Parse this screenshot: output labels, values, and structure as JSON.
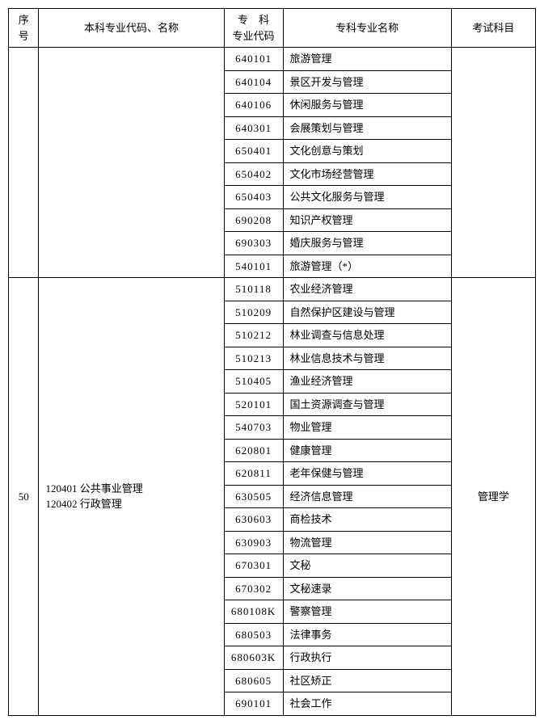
{
  "header": {
    "seq": "序号",
    "bk": "本科专业代码、名称",
    "zkc": "专　科\n专业代码",
    "zkm": "专科专业名称",
    "exam": "考试科目"
  },
  "groups": [
    {
      "seq": "",
      "bk": "",
      "exam": "",
      "rows": [
        {
          "code": "640101",
          "name": "旅游管理"
        },
        {
          "code": "640104",
          "name": "景区开发与管理"
        },
        {
          "code": "640106",
          "name": "休闲服务与管理"
        },
        {
          "code": "640301",
          "name": "会展策划与管理"
        },
        {
          "code": "650401",
          "name": "文化创意与策划"
        },
        {
          "code": "650402",
          "name": "文化市场经营管理"
        },
        {
          "code": "650403",
          "name": "公共文化服务与管理"
        },
        {
          "code": "690208",
          "name": "知识产权管理"
        },
        {
          "code": "690303",
          "name": "婚庆服务与管理"
        },
        {
          "code": "540101",
          "name": "旅游管理（*）"
        }
      ]
    },
    {
      "seq": "50",
      "bk": "120401 公共事业管理\n120402 行政管理",
      "exam": "管理学",
      "rows": [
        {
          "code": "510118",
          "name": "农业经济管理"
        },
        {
          "code": "510209",
          "name": "自然保护区建设与管理"
        },
        {
          "code": "510212",
          "name": "林业调查与信息处理"
        },
        {
          "code": "510213",
          "name": "林业信息技术与管理"
        },
        {
          "code": "510405",
          "name": "渔业经济管理"
        },
        {
          "code": "520101",
          "name": "国土资源调查与管理"
        },
        {
          "code": "540703",
          "name": "物业管理"
        },
        {
          "code": "620801",
          "name": "健康管理"
        },
        {
          "code": "620811",
          "name": "老年保健与管理"
        },
        {
          "code": "630505",
          "name": "经济信息管理"
        },
        {
          "code": "630603",
          "name": "商检技术"
        },
        {
          "code": "630903",
          "name": "物流管理"
        },
        {
          "code": "670301",
          "name": "文秘"
        },
        {
          "code": "670302",
          "name": "文秘速录"
        },
        {
          "code": "680108K",
          "name": "警察管理"
        },
        {
          "code": "680503",
          "name": "法律事务"
        },
        {
          "code": "680603K",
          "name": "行政执行"
        },
        {
          "code": "680605",
          "name": "社区矫正"
        },
        {
          "code": "690101",
          "name": "社会工作"
        }
      ]
    }
  ]
}
